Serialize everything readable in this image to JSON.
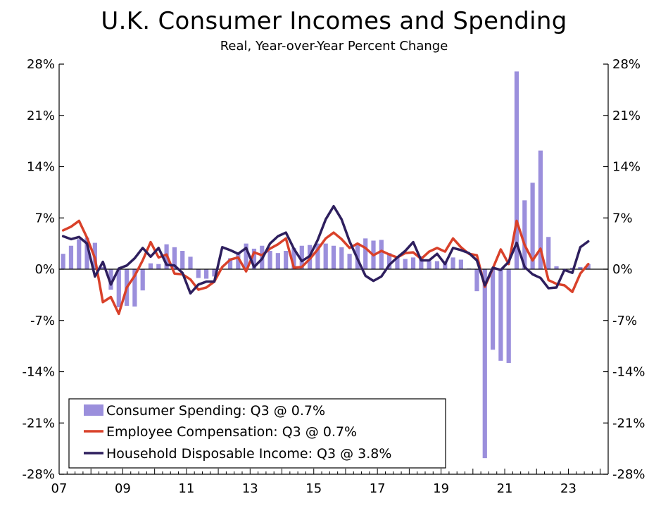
{
  "chart_data": {
    "type": "bar+line",
    "title": "U.K. Consumer Incomes and Spending",
    "subtitle": "Real, Year-over-Year Percent Change",
    "ylim": [
      -28,
      28
    ],
    "y_ticks": [
      {
        "value": 28,
        "label": "28%"
      },
      {
        "value": 21,
        "label": "21%"
      },
      {
        "value": 14,
        "label": "14%"
      },
      {
        "value": 7,
        "label": "7%"
      },
      {
        "value": 0,
        "label": "0%"
      },
      {
        "value": -7,
        "label": "-7%"
      },
      {
        "value": -14,
        "label": "-14%"
      },
      {
        "value": -21,
        "label": "-21%"
      },
      {
        "value": -28,
        "label": "-28%"
      }
    ],
    "x_ticks": [
      {
        "value": 2007,
        "label": "07"
      },
      {
        "value": 2009,
        "label": "09"
      },
      {
        "value": 2011,
        "label": "11"
      },
      {
        "value": 2013,
        "label": "13"
      },
      {
        "value": 2015,
        "label": "15"
      },
      {
        "value": 2017,
        "label": "17"
      },
      {
        "value": 2019,
        "label": "19"
      },
      {
        "value": 2021,
        "label": "21"
      },
      {
        "value": 2023,
        "label": "23"
      }
    ],
    "xlim": [
      2007.0,
      2024.25
    ],
    "x_start": 2007.0,
    "x_step": 0.25,
    "series": [
      {
        "name": "Consumer Spending: Q3 @ 0.7%",
        "type": "bar",
        "color": "#9b8fdc",
        "values": [
          2.1,
          3.2,
          4.1,
          4.3,
          3.6,
          0.3,
          -2.8,
          -5.2,
          -5.0,
          -5.1,
          -2.9,
          0.8,
          0.7,
          3.4,
          3.0,
          2.5,
          1.7,
          -1.2,
          -1.3,
          -1.0,
          0.0,
          1.5,
          2.3,
          3.5,
          2.8,
          3.2,
          2.5,
          2.2,
          2.5,
          2.9,
          3.2,
          3.3,
          3.5,
          3.5,
          3.2,
          3.0,
          2.1,
          3.3,
          4.2,
          3.9,
          4.0,
          2.2,
          1.7,
          1.4,
          1.6,
          1.8,
          1.1,
          1.1,
          1.1,
          1.6,
          1.3,
          0.1,
          -3.0,
          -25.8,
          -11.0,
          -12.5,
          -12.8,
          27.0,
          9.4,
          11.8,
          16.2,
          4.4,
          0.4,
          -0.1,
          0.2,
          0.3,
          0.7
        ]
      },
      {
        "name": "Employee Compensation: Q3 @ 0.7%",
        "type": "line",
        "color": "#d9412a",
        "values": [
          5.3,
          5.8,
          6.6,
          4.3,
          1.5,
          -4.5,
          -3.8,
          -6.1,
          -2.5,
          -0.9,
          1.2,
          3.7,
          1.6,
          2.0,
          -0.6,
          -0.7,
          -1.4,
          -2.8,
          -2.5,
          -1.7,
          0.3,
          1.3,
          1.6,
          -0.3,
          2.3,
          1.9,
          2.8,
          3.4,
          4.2,
          0.2,
          0.3,
          1.4,
          2.7,
          4.2,
          5.0,
          4.1,
          2.9,
          3.5,
          2.9,
          1.9,
          2.5,
          2.0,
          1.6,
          2.2,
          2.3,
          1.4,
          2.4,
          2.9,
          2.4,
          4.2,
          3.0,
          2.1,
          1.9,
          -2.4,
          0.1,
          2.7,
          0.7,
          6.6,
          3.3,
          1.2,
          2.8,
          -1.5,
          -2.0,
          -2.2,
          -3.1,
          -0.6,
          0.7
        ]
      },
      {
        "name": "Household Disposable Income: Q3 @ 3.8%",
        "type": "line",
        "color": "#2e1f5e",
        "values": [
          4.5,
          4.1,
          4.4,
          3.5,
          -1.0,
          1.0,
          -2.1,
          0.1,
          0.5,
          1.5,
          2.9,
          1.7,
          2.9,
          0.6,
          0.5,
          -0.5,
          -3.3,
          -2.1,
          -1.7,
          -1.7,
          3.0,
          2.6,
          2.1,
          2.9,
          0.3,
          1.4,
          3.5,
          4.5,
          5.0,
          2.8,
          1.1,
          1.8,
          4.0,
          6.8,
          8.6,
          6.8,
          3.8,
          1.4,
          -0.9,
          -1.6,
          -1.0,
          0.6,
          1.6,
          2.5,
          3.7,
          1.2,
          1.2,
          2.1,
          0.7,
          2.9,
          2.6,
          2.2,
          1.2,
          -2.2,
          0.2,
          -0.1,
          1.0,
          3.6,
          0.3,
          -0.7,
          -1.2,
          -2.6,
          -2.5,
          -0.1,
          -0.5,
          3.0,
          3.8
        ]
      }
    ],
    "legend": {
      "placement": "bottom-left",
      "entries": [
        "Consumer Spending: Q3 @ 0.7%",
        "Employee Compensation: Q3 @ 0.7%",
        "Household Disposable Income: Q3 @ 3.8%"
      ]
    },
    "grid": false
  }
}
